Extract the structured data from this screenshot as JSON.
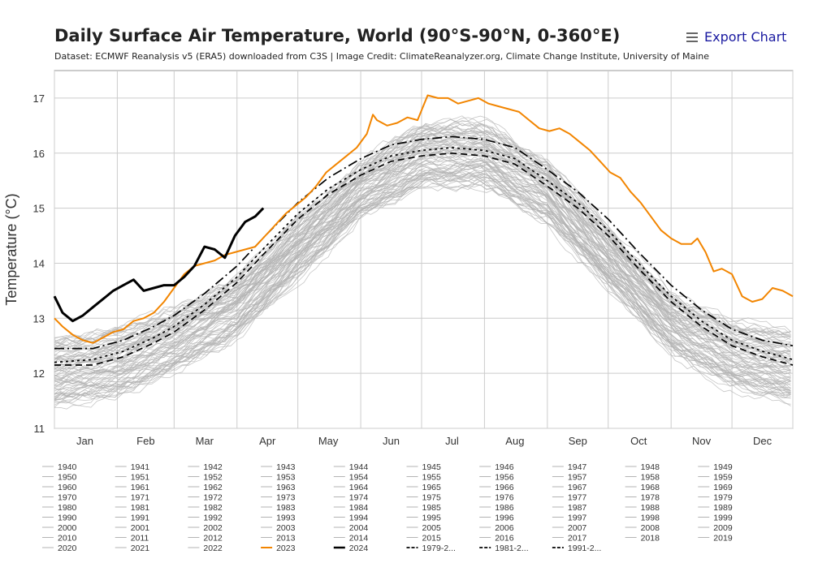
{
  "header": {
    "title": "Daily Surface Air Temperature, World (90°S-90°N, 0-360°E)",
    "subtitle": "Dataset: ECMWF Reanalysis v5 (ERA5) downloaded from C3S | Image Credit: ClimateReanalyzer.org, Climate Change Institute, University of Maine",
    "export_label": "Export Chart",
    "export_icon": "hamburger-menu-icon"
  },
  "chart_data": {
    "type": "line",
    "ylabel": "Temperature (°C)",
    "xlabel": "",
    "ylim": [
      11,
      17.5
    ],
    "yticks": [
      11,
      12,
      13,
      14,
      15,
      16,
      17
    ],
    "xlim": [
      1,
      365
    ],
    "xticks": [
      {
        "label": "Jan",
        "day": 16
      },
      {
        "label": "Feb",
        "day": 46
      },
      {
        "label": "Mar",
        "day": 75
      },
      {
        "label": "Apr",
        "day": 106
      },
      {
        "label": "May",
        "day": 136
      },
      {
        "label": "Jun",
        "day": 167
      },
      {
        "label": "Jul",
        "day": 197
      },
      {
        "label": "Aug",
        "day": 228
      },
      {
        "label": "Sep",
        "day": 259
      },
      {
        "label": "Oct",
        "day": 289
      },
      {
        "label": "Nov",
        "day": 320
      },
      {
        "label": "Dec",
        "day": 350
      }
    ],
    "grid": true,
    "background_years": {
      "first": 1940,
      "last": 2022,
      "color": "#b3b3b3",
      "envelope_low": [
        [
          1,
          11.3
        ],
        [
          32,
          11.55
        ],
        [
          60,
          12.0
        ],
        [
          91,
          12.6
        ],
        [
          121,
          13.7
        ],
        [
          152,
          14.8
        ],
        [
          182,
          15.35
        ],
        [
          213,
          15.35
        ],
        [
          244,
          14.7
        ],
        [
          274,
          13.5
        ],
        [
          305,
          12.3
        ],
        [
          335,
          11.7
        ],
        [
          365,
          11.4
        ]
      ],
      "envelope_high": [
        [
          1,
          12.8
        ],
        [
          32,
          12.95
        ],
        [
          60,
          13.35
        ],
        [
          91,
          13.9
        ],
        [
          121,
          14.95
        ],
        [
          152,
          15.95
        ],
        [
          182,
          16.7
        ],
        [
          213,
          16.7
        ],
        [
          244,
          16.0
        ],
        [
          274,
          14.8
        ],
        [
          305,
          13.6
        ],
        [
          335,
          13.1
        ],
        [
          365,
          12.95
        ]
      ]
    },
    "series": [
      {
        "name": "2023",
        "color": "#f28500",
        "width": 2,
        "dash": "solid",
        "points": [
          [
            1,
            13.0
          ],
          [
            5,
            12.85
          ],
          [
            10,
            12.7
          ],
          [
            15,
            12.6
          ],
          [
            20,
            12.55
          ],
          [
            25,
            12.65
          ],
          [
            30,
            12.75
          ],
          [
            35,
            12.8
          ],
          [
            40,
            12.95
          ],
          [
            45,
            13.0
          ],
          [
            50,
            13.1
          ],
          [
            55,
            13.3
          ],
          [
            60,
            13.55
          ],
          [
            65,
            13.8
          ],
          [
            70,
            13.95
          ],
          [
            75,
            14.0
          ],
          [
            80,
            14.05
          ],
          [
            85,
            14.15
          ],
          [
            90,
            14.2
          ],
          [
            95,
            14.25
          ],
          [
            100,
            14.3
          ],
          [
            105,
            14.5
          ],
          [
            110,
            14.7
          ],
          [
            115,
            14.9
          ],
          [
            120,
            15.05
          ],
          [
            125,
            15.2
          ],
          [
            130,
            15.4
          ],
          [
            135,
            15.65
          ],
          [
            140,
            15.8
          ],
          [
            145,
            15.95
          ],
          [
            150,
            16.1
          ],
          [
            155,
            16.35
          ],
          [
            158,
            16.7
          ],
          [
            160,
            16.6
          ],
          [
            165,
            16.5
          ],
          [
            170,
            16.55
          ],
          [
            175,
            16.65
          ],
          [
            180,
            16.6
          ],
          [
            185,
            17.05
          ],
          [
            190,
            17.0
          ],
          [
            195,
            17.0
          ],
          [
            200,
            16.9
          ],
          [
            205,
            16.95
          ],
          [
            210,
            17.0
          ],
          [
            215,
            16.9
          ],
          [
            220,
            16.85
          ],
          [
            225,
            16.8
          ],
          [
            230,
            16.75
          ],
          [
            235,
            16.6
          ],
          [
            240,
            16.45
          ],
          [
            245,
            16.4
          ],
          [
            250,
            16.45
          ],
          [
            255,
            16.35
          ],
          [
            260,
            16.2
          ],
          [
            265,
            16.05
          ],
          [
            270,
            15.85
          ],
          [
            275,
            15.65
          ],
          [
            280,
            15.55
          ],
          [
            285,
            15.3
          ],
          [
            290,
            15.1
          ],
          [
            295,
            14.85
          ],
          [
            300,
            14.6
          ],
          [
            305,
            14.45
          ],
          [
            310,
            14.35
          ],
          [
            315,
            14.35
          ],
          [
            318,
            14.45
          ],
          [
            322,
            14.2
          ],
          [
            326,
            13.85
          ],
          [
            330,
            13.9
          ],
          [
            335,
            13.8
          ],
          [
            340,
            13.4
          ],
          [
            345,
            13.3
          ],
          [
            350,
            13.35
          ],
          [
            355,
            13.55
          ],
          [
            360,
            13.5
          ],
          [
            365,
            13.4
          ]
        ]
      },
      {
        "name": "2024",
        "color": "#000000",
        "width": 3,
        "dash": "solid",
        "points": [
          [
            1,
            13.4
          ],
          [
            5,
            13.1
          ],
          [
            10,
            12.95
          ],
          [
            15,
            13.05
          ],
          [
            20,
            13.2
          ],
          [
            25,
            13.35
          ],
          [
            30,
            13.5
          ],
          [
            35,
            13.6
          ],
          [
            40,
            13.7
          ],
          [
            45,
            13.5
          ],
          [
            50,
            13.55
          ],
          [
            55,
            13.6
          ],
          [
            60,
            13.6
          ],
          [
            65,
            13.75
          ],
          [
            70,
            13.95
          ],
          [
            75,
            14.3
          ],
          [
            80,
            14.25
          ],
          [
            85,
            14.1
          ],
          [
            90,
            14.5
          ],
          [
            95,
            14.75
          ],
          [
            100,
            14.85
          ],
          [
            104,
            15.0
          ]
        ]
      },
      {
        "name": "1979-2000",
        "color": "#000000",
        "width": 1.7,
        "dash": "8,5",
        "points": [
          [
            1,
            12.15
          ],
          [
            20,
            12.15
          ],
          [
            35,
            12.3
          ],
          [
            50,
            12.55
          ],
          [
            60,
            12.75
          ],
          [
            75,
            13.15
          ],
          [
            91,
            13.65
          ],
          [
            105,
            14.2
          ],
          [
            121,
            14.8
          ],
          [
            136,
            15.25
          ],
          [
            152,
            15.6
          ],
          [
            167,
            15.85
          ],
          [
            182,
            15.95
          ],
          [
            197,
            16.0
          ],
          [
            213,
            15.95
          ],
          [
            228,
            15.8
          ],
          [
            244,
            15.4
          ],
          [
            259,
            15.0
          ],
          [
            274,
            14.5
          ],
          [
            289,
            13.9
          ],
          [
            305,
            13.3
          ],
          [
            320,
            12.85
          ],
          [
            335,
            12.5
          ],
          [
            350,
            12.3
          ],
          [
            365,
            12.15
          ]
        ]
      },
      {
        "name": "1981-2010",
        "color": "#000000",
        "width": 1.7,
        "dash": "3,4",
        "points": [
          [
            1,
            12.2
          ],
          [
            20,
            12.25
          ],
          [
            35,
            12.4
          ],
          [
            50,
            12.65
          ],
          [
            60,
            12.85
          ],
          [
            75,
            13.25
          ],
          [
            91,
            13.75
          ],
          [
            105,
            14.3
          ],
          [
            121,
            14.9
          ],
          [
            136,
            15.35
          ],
          [
            152,
            15.7
          ],
          [
            167,
            15.95
          ],
          [
            182,
            16.05
          ],
          [
            197,
            16.1
          ],
          [
            213,
            16.05
          ],
          [
            228,
            15.9
          ],
          [
            244,
            15.5
          ],
          [
            259,
            15.1
          ],
          [
            274,
            14.6
          ],
          [
            289,
            14.0
          ],
          [
            305,
            13.4
          ],
          [
            320,
            12.95
          ],
          [
            335,
            12.6
          ],
          [
            350,
            12.4
          ],
          [
            365,
            12.25
          ]
        ]
      },
      {
        "name": "1991-2020",
        "color": "#000000",
        "width": 1.7,
        "dash": "12,4,2,4",
        "points": [
          [
            1,
            12.45
          ],
          [
            20,
            12.45
          ],
          [
            35,
            12.6
          ],
          [
            50,
            12.85
          ],
          [
            60,
            13.05
          ],
          [
            75,
            13.45
          ],
          [
            91,
            13.95
          ],
          [
            105,
            14.5
          ],
          [
            121,
            15.1
          ],
          [
            136,
            15.55
          ],
          [
            152,
            15.9
          ],
          [
            167,
            16.15
          ],
          [
            182,
            16.25
          ],
          [
            197,
            16.3
          ],
          [
            213,
            16.25
          ],
          [
            228,
            16.1
          ],
          [
            244,
            15.7
          ],
          [
            259,
            15.3
          ],
          [
            274,
            14.8
          ],
          [
            289,
            14.2
          ],
          [
            305,
            13.6
          ],
          [
            320,
            13.15
          ],
          [
            335,
            12.8
          ],
          [
            350,
            12.6
          ],
          [
            365,
            12.5
          ]
        ]
      }
    ]
  },
  "legend": {
    "items": [
      "1940",
      "1941",
      "1942",
      "1943",
      "1944",
      "1945",
      "1946",
      "1947",
      "1948",
      "1949",
      "1950",
      "1951",
      "1952",
      "1953",
      "1954",
      "1955",
      "1956",
      "1957",
      "1958",
      "1959",
      "1960",
      "1961",
      "1962",
      "1963",
      "1964",
      "1965",
      "1966",
      "1967",
      "1968",
      "1969",
      "1970",
      "1971",
      "1972",
      "1973",
      "1974",
      "1975",
      "1976",
      "1977",
      "1978",
      "1979",
      "1980",
      "1981",
      "1982",
      "1983",
      "1984",
      "1985",
      "1986",
      "1987",
      "1988",
      "1989",
      "1990",
      "1991",
      "1992",
      "1993",
      "1994",
      "1995",
      "1996",
      "1997",
      "1998",
      "1999",
      "2000",
      "2001",
      "2002",
      "2003",
      "2004",
      "2005",
      "2006",
      "2007",
      "2008",
      "2009",
      "2010",
      "2011",
      "2012",
      "2013",
      "2014",
      "2015",
      "2016",
      "2017",
      "2018",
      "2019",
      "2020",
      "2021",
      "2022",
      "2023",
      "2024",
      "1979-2...",
      "1981-2...",
      "1991-2..."
    ]
  }
}
